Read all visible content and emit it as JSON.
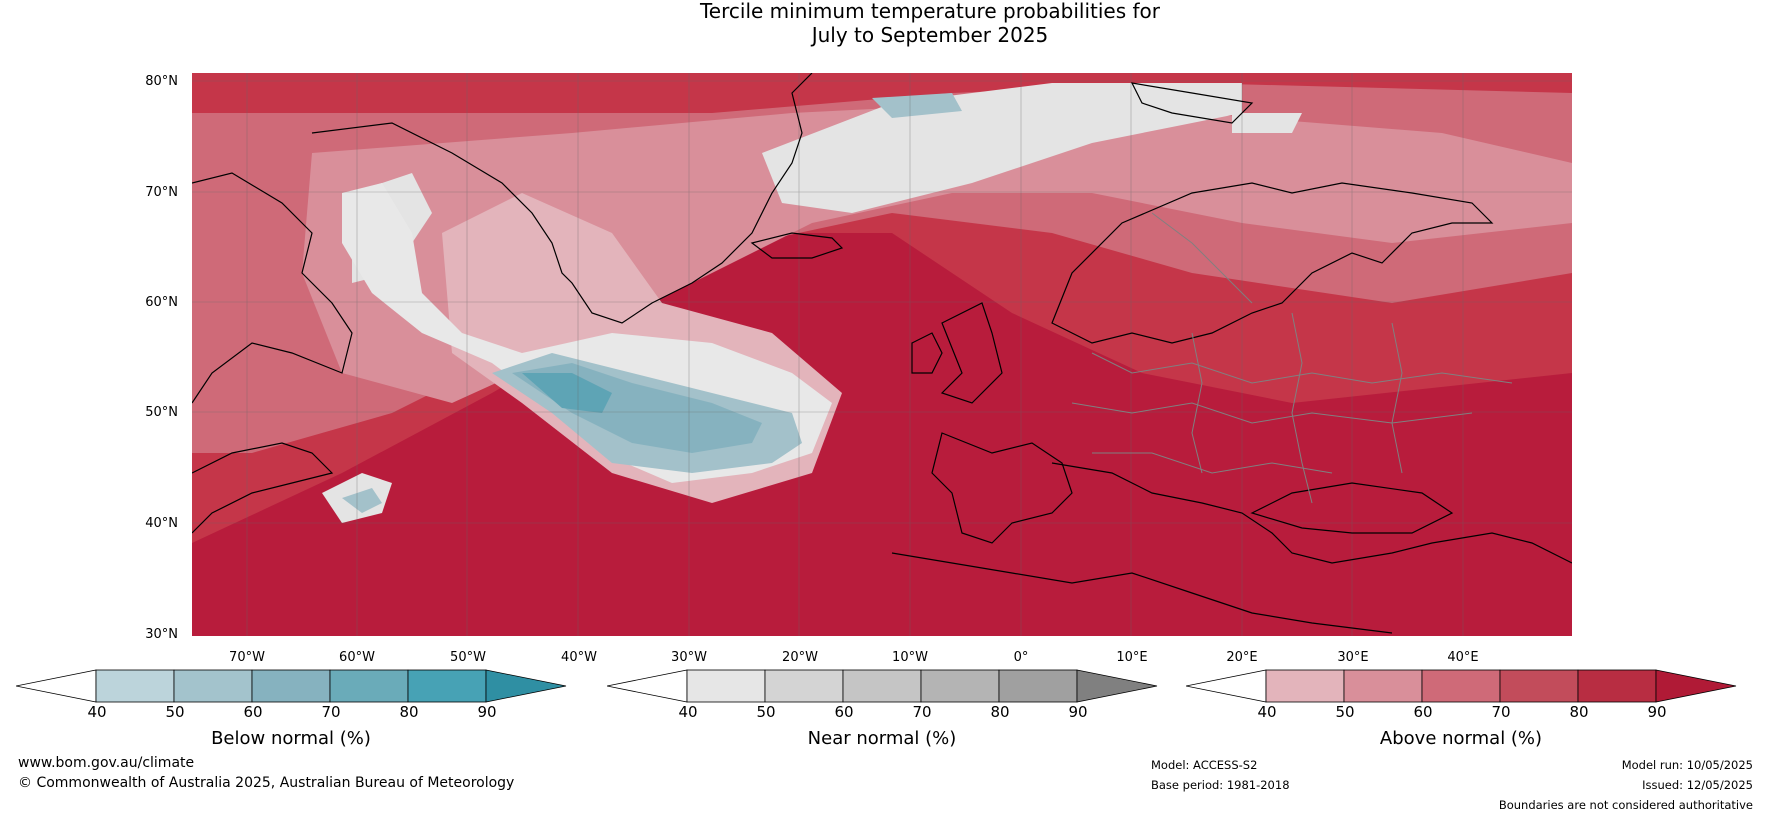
{
  "title": {
    "line1": "Tercile minimum temperature probabilities for",
    "line2": "July to September 2025"
  },
  "map": {
    "lat_labels": [
      "80°N",
      "70°N",
      "60°N",
      "50°N",
      "40°N",
      "30°N"
    ],
    "lon_labels": [
      "70°W",
      "60°W",
      "50°W",
      "40°W",
      "30°W",
      "20°W",
      "10°W",
      "0°",
      "10°E",
      "20°E",
      "30°E",
      "40°E"
    ],
    "colors": {
      "ocean_high": "#b81c3c",
      "above_80": "#c53649",
      "above_70": "#cf6a78",
      "above_60": "#d98f9a",
      "above_50": "#e3b4bb",
      "near": "#e4e4e4",
      "below_60": "#a3c1ca",
      "below_70": "#86b2bf",
      "below_80": "#5ea4b5",
      "land_line": "#000000",
      "border_line": "#808080"
    }
  },
  "colorbars": [
    {
      "label": "Below normal (%)",
      "ticks": [
        "40",
        "50",
        "60",
        "70",
        "80",
        "90"
      ],
      "colors": [
        "#ffffff",
        "#bcd4db",
        "#a3c3cc",
        "#86b2bf",
        "#6aabb9",
        "#47a2b5",
        "#2f8fa3"
      ]
    },
    {
      "label": "Near normal (%)",
      "ticks": [
        "40",
        "50",
        "60",
        "70",
        "80",
        "90"
      ],
      "colors": [
        "#ffffff",
        "#e6e6e6",
        "#d4d4d4",
        "#c5c5c5",
        "#b4b4b4",
        "#a0a0a0",
        "#808080"
      ]
    },
    {
      "label": "Above normal (%)",
      "ticks": [
        "40",
        "50",
        "60",
        "70",
        "80",
        "90"
      ],
      "colors": [
        "#ffffff",
        "#e3b4bb",
        "#d98f9a",
        "#cf6a78",
        "#c24c5b",
        "#b82d42",
        "#b01a36"
      ]
    }
  ],
  "footer": {
    "website": "www.bom.gov.au/climate",
    "copyright": "© Commonwealth of Australia 2025, Australian Bureau of Meteorology",
    "model": "Model: ACCESS-S2",
    "base_period": "Base period: 1981-2018",
    "model_run": "Model run: 10/05/2025",
    "issued": "Issued: 12/05/2025",
    "disclaimer": "Boundaries are not considered authoritative"
  }
}
